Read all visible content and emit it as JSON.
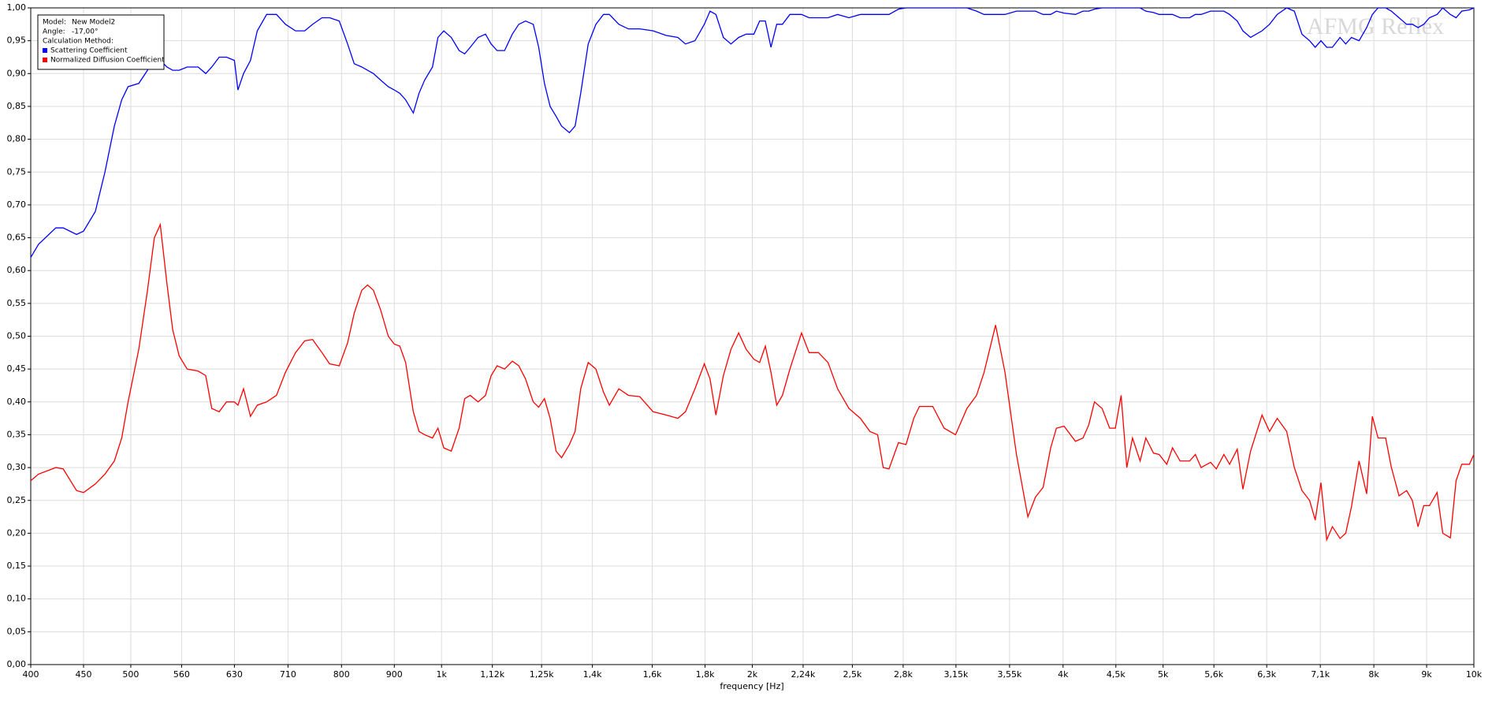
{
  "chart_data": {
    "type": "line",
    "x_label": "frequency [Hz]",
    "watermark": "AFMG Reflex",
    "legend_info": {
      "model_label": "Model:",
      "model": "New Model2",
      "angle_label": "Angle:",
      "angle": "-17,00°",
      "method_label": "Calculation Method:"
    },
    "x_scale": "log",
    "grid": true,
    "legend": "upper left",
    "xlim": [
      400,
      10000
    ],
    "ylim": [
      0,
      1
    ],
    "xticks": [
      400,
      450,
      500,
      560,
      630,
      710,
      800,
      900,
      {
        "value": 1000,
        "label": "1k"
      },
      {
        "value": 1120,
        "label": "1,12k"
      },
      {
        "value": 1250,
        "label": "1,25k"
      },
      {
        "value": 1400,
        "label": "1,4k"
      },
      {
        "value": 1600,
        "label": "1,6k"
      },
      {
        "value": 1800,
        "label": "1,8k"
      },
      {
        "value": 2000,
        "label": "2k"
      },
      {
        "value": 2240,
        "label": "2,24k"
      },
      {
        "value": 2500,
        "label": "2,5k"
      },
      {
        "value": 2800,
        "label": "2,8k"
      },
      {
        "value": 3150,
        "label": "3,15k"
      },
      {
        "value": 3550,
        "label": "3,55k"
      },
      {
        "value": 4000,
        "label": "4k"
      },
      {
        "value": 4500,
        "label": "4,5k"
      },
      {
        "value": 5000,
        "label": "5k"
      },
      {
        "value": 5600,
        "label": "5,6k"
      },
      {
        "value": 6300,
        "label": "6,3k"
      },
      {
        "value": 7100,
        "label": "7,1k"
      },
      {
        "value": 8000,
        "label": "8k"
      },
      {
        "value": 9000,
        "label": "9k"
      },
      {
        "value": 10000,
        "label": "10k"
      }
    ],
    "yticks": [
      {
        "value": 0,
        "label": "0,00"
      },
      {
        "value": 0.05,
        "label": "0,05"
      },
      {
        "value": 0.1,
        "label": "0,10"
      },
      {
        "value": 0.15,
        "label": "0,15"
      },
      {
        "value": 0.2,
        "label": "0,20"
      },
      {
        "value": 0.25,
        "label": "0,25"
      },
      {
        "value": 0.3,
        "label": "0,30"
      },
      {
        "value": 0.35,
        "label": "0,35"
      },
      {
        "value": 0.4,
        "label": "0,40"
      },
      {
        "value": 0.45,
        "label": "0,45"
      },
      {
        "value": 0.5,
        "label": "0,50"
      },
      {
        "value": 0.55,
        "label": "0,55"
      },
      {
        "value": 0.6,
        "label": "0,60"
      },
      {
        "value": 0.65,
        "label": "0,65"
      },
      {
        "value": 0.7,
        "label": "0,70"
      },
      {
        "value": 0.75,
        "label": "0,75"
      },
      {
        "value": 0.8,
        "label": "0,80"
      },
      {
        "value": 0.85,
        "label": "0,85"
      },
      {
        "value": 0.9,
        "label": "0,90"
      },
      {
        "value": 0.95,
        "label": "0,95"
      },
      {
        "value": 1,
        "label": "1,00"
      }
    ],
    "x": [
      400,
      407,
      423,
      430,
      443,
      450,
      462,
      472,
      482,
      490,
      497,
      509,
      519,
      527,
      534,
      542,
      549,
      557,
      567,
      581,
      591,
      599,
      609,
      619,
      630,
      635,
      643,
      653,
      663,
      677,
      692,
      706,
      722,
      737,
      750,
      766,
      779,
      796,
      811,
      823,
      837,
      848,
      859,
      873,
      888,
      900,
      911,
      923,
      939,
      951,
      963,
      980,
      992,
      1005,
      1022,
      1040,
      1053,
      1066,
      1085,
      1103,
      1117,
      1132,
      1151,
      1171,
      1188,
      1206,
      1227,
      1242,
      1258,
      1274,
      1291,
      1307,
      1330,
      1347,
      1364,
      1387,
      1411,
      1435,
      1454,
      1485,
      1517,
      1556,
      1603,
      1651,
      1694,
      1723,
      1760,
      1797,
      1820,
      1844,
      1875,
      1907,
      1940,
      1973,
      2007,
      2033,
      2059,
      2085,
      2112,
      2139,
      2175,
      2232,
      2270,
      2318,
      2368,
      2419,
      2481,
      2545,
      2600,
      2645,
      2678,
      2713,
      2771,
      2818,
      2867,
      2903,
      2991,
      3068,
      3147,
      3228,
      3298,
      3354,
      3441,
      3514,
      3605,
      3698,
      3761,
      3826,
      3891,
      3941,
      4009,
      4112,
      4182,
      4236,
      4290,
      4364,
      4438,
      4495,
      4553,
      4611,
      4670,
      4750,
      4811,
      4894,
      4956,
      5041,
      5106,
      5193,
      5305,
      5373,
      5442,
      5558,
      5630,
      5726,
      5799,
      5899,
      5974,
      6077,
      6234,
      6340,
      6449,
      6587,
      6700,
      6815,
      6932,
      7020,
      7110,
      7202,
      7294,
      7419,
      7514,
      7610,
      7741,
      7873,
      7974,
      8076,
      8214,
      8320,
      8462,
      8607,
      8717,
      8829,
      8942,
      9057,
      9212,
      9330,
      9489,
      9611,
      9734,
      9901,
      10000
    ],
    "series": [
      {
        "name": "Scattering Coefficient",
        "color": "#0000ff",
        "values": [
          0.62,
          0.64,
          0.665,
          0.665,
          0.655,
          0.66,
          0.69,
          0.75,
          0.82,
          0.86,
          0.88,
          0.885,
          0.905,
          0.93,
          0.92,
          0.91,
          0.905,
          0.905,
          0.91,
          0.91,
          0.9,
          0.91,
          0.925,
          0.925,
          0.92,
          0.875,
          0.9,
          0.92,
          0.965,
          0.99,
          0.99,
          0.975,
          0.965,
          0.965,
          0.975,
          0.985,
          0.985,
          0.98,
          0.945,
          0.915,
          0.91,
          0.905,
          0.9,
          0.89,
          0.88,
          0.875,
          0.87,
          0.86,
          0.84,
          0.87,
          0.89,
          0.91,
          0.955,
          0.965,
          0.955,
          0.935,
          0.93,
          0.94,
          0.955,
          0.96,
          0.945,
          0.935,
          0.935,
          0.96,
          0.975,
          0.98,
          0.975,
          0.94,
          0.885,
          0.85,
          0.835,
          0.82,
          0.81,
          0.82,
          0.87,
          0.945,
          0.975,
          0.99,
          0.99,
          0.975,
          0.968,
          0.968,
          0.965,
          0.958,
          0.955,
          0.945,
          0.95,
          0.975,
          0.995,
          0.99,
          0.955,
          0.945,
          0.955,
          0.96,
          0.96,
          0.98,
          0.98,
          0.94,
          0.975,
          0.975,
          0.99,
          0.99,
          0.985,
          0.985,
          0.985,
          0.99,
          0.985,
          0.99,
          0.99,
          0.99,
          0.99,
          0.99,
          0.998,
          1,
          1,
          1,
          1,
          1,
          1,
          1,
          0.995,
          0.99,
          0.99,
          0.99,
          0.995,
          0.995,
          0.995,
          0.99,
          0.99,
          0.995,
          0.992,
          0.99,
          0.995,
          0.995,
          0.998,
          1,
          1,
          1,
          1,
          1,
          1,
          1,
          0.995,
          0.993,
          0.99,
          0.99,
          0.99,
          0.985,
          0.985,
          0.99,
          0.99,
          0.995,
          0.995,
          0.995,
          0.99,
          0.98,
          0.965,
          0.955,
          0.965,
          0.975,
          0.99,
          1,
          0.995,
          0.96,
          0.95,
          0.94,
          0.95,
          0.94,
          0.94,
          0.955,
          0.945,
          0.955,
          0.95,
          0.97,
          0.99,
          1,
          1,
          0.995,
          0.985,
          0.975,
          0.975,
          0.97,
          0.975,
          0.985,
          0.99,
          1,
          0.99,
          0.985,
          0.995,
          0.997,
          1
        ]
      },
      {
        "name": "Normalized Diffusion Coefficient",
        "color": "#ff0000",
        "values": [
          0.28,
          0.29,
          0.3,
          0.298,
          0.265,
          0.262,
          0.275,
          0.29,
          0.31,
          0.345,
          0.4,
          0.48,
          0.57,
          0.65,
          0.67,
          0.58,
          0.51,
          0.47,
          0.45,
          0.447,
          0.44,
          0.39,
          0.385,
          0.4,
          0.4,
          0.395,
          0.42,
          0.378,
          0.395,
          0.4,
          0.41,
          0.445,
          0.475,
          0.493,
          0.495,
          0.475,
          0.458,
          0.455,
          0.49,
          0.535,
          0.57,
          0.578,
          0.57,
          0.54,
          0.5,
          0.488,
          0.485,
          0.46,
          0.385,
          0.355,
          0.35,
          0.345,
          0.36,
          0.33,
          0.325,
          0.36,
          0.405,
          0.41,
          0.4,
          0.41,
          0.44,
          0.455,
          0.45,
          0.462,
          0.455,
          0.435,
          0.4,
          0.392,
          0.405,
          0.375,
          0.325,
          0.315,
          0.335,
          0.355,
          0.42,
          0.46,
          0.45,
          0.415,
          0.395,
          0.42,
          0.41,
          0.408,
          0.385,
          0.38,
          0.375,
          0.385,
          0.42,
          0.458,
          0.435,
          0.38,
          0.44,
          0.48,
          0.505,
          0.48,
          0.465,
          0.46,
          0.485,
          0.445,
          0.395,
          0.41,
          0.45,
          0.505,
          0.475,
          0.475,
          0.46,
          0.42,
          0.39,
          0.375,
          0.355,
          0.35,
          0.3,
          0.298,
          0.338,
          0.335,
          0.375,
          0.393,
          0.393,
          0.36,
          0.35,
          0.39,
          0.41,
          0.445,
          0.517,
          0.445,
          0.32,
          0.225,
          0.255,
          0.27,
          0.33,
          0.36,
          0.363,
          0.34,
          0.345,
          0.365,
          0.4,
          0.39,
          0.36,
          0.36,
          0.41,
          0.3,
          0.345,
          0.31,
          0.345,
          0.322,
          0.32,
          0.305,
          0.33,
          0.31,
          0.31,
          0.32,
          0.3,
          0.308,
          0.298,
          0.32,
          0.305,
          0.328,
          0.267,
          0.325,
          0.38,
          0.355,
          0.375,
          0.355,
          0.3,
          0.265,
          0.25,
          0.22,
          0.277,
          0.19,
          0.21,
          0.192,
          0.2,
          0.24,
          0.31,
          0.26,
          0.378,
          0.345,
          0.345,
          0.3,
          0.257,
          0.265,
          0.25,
          0.21,
          0.242,
          0.242,
          0.262,
          0.2,
          0.193,
          0.28,
          0.305,
          0.305,
          0.32
        ]
      }
    ]
  }
}
